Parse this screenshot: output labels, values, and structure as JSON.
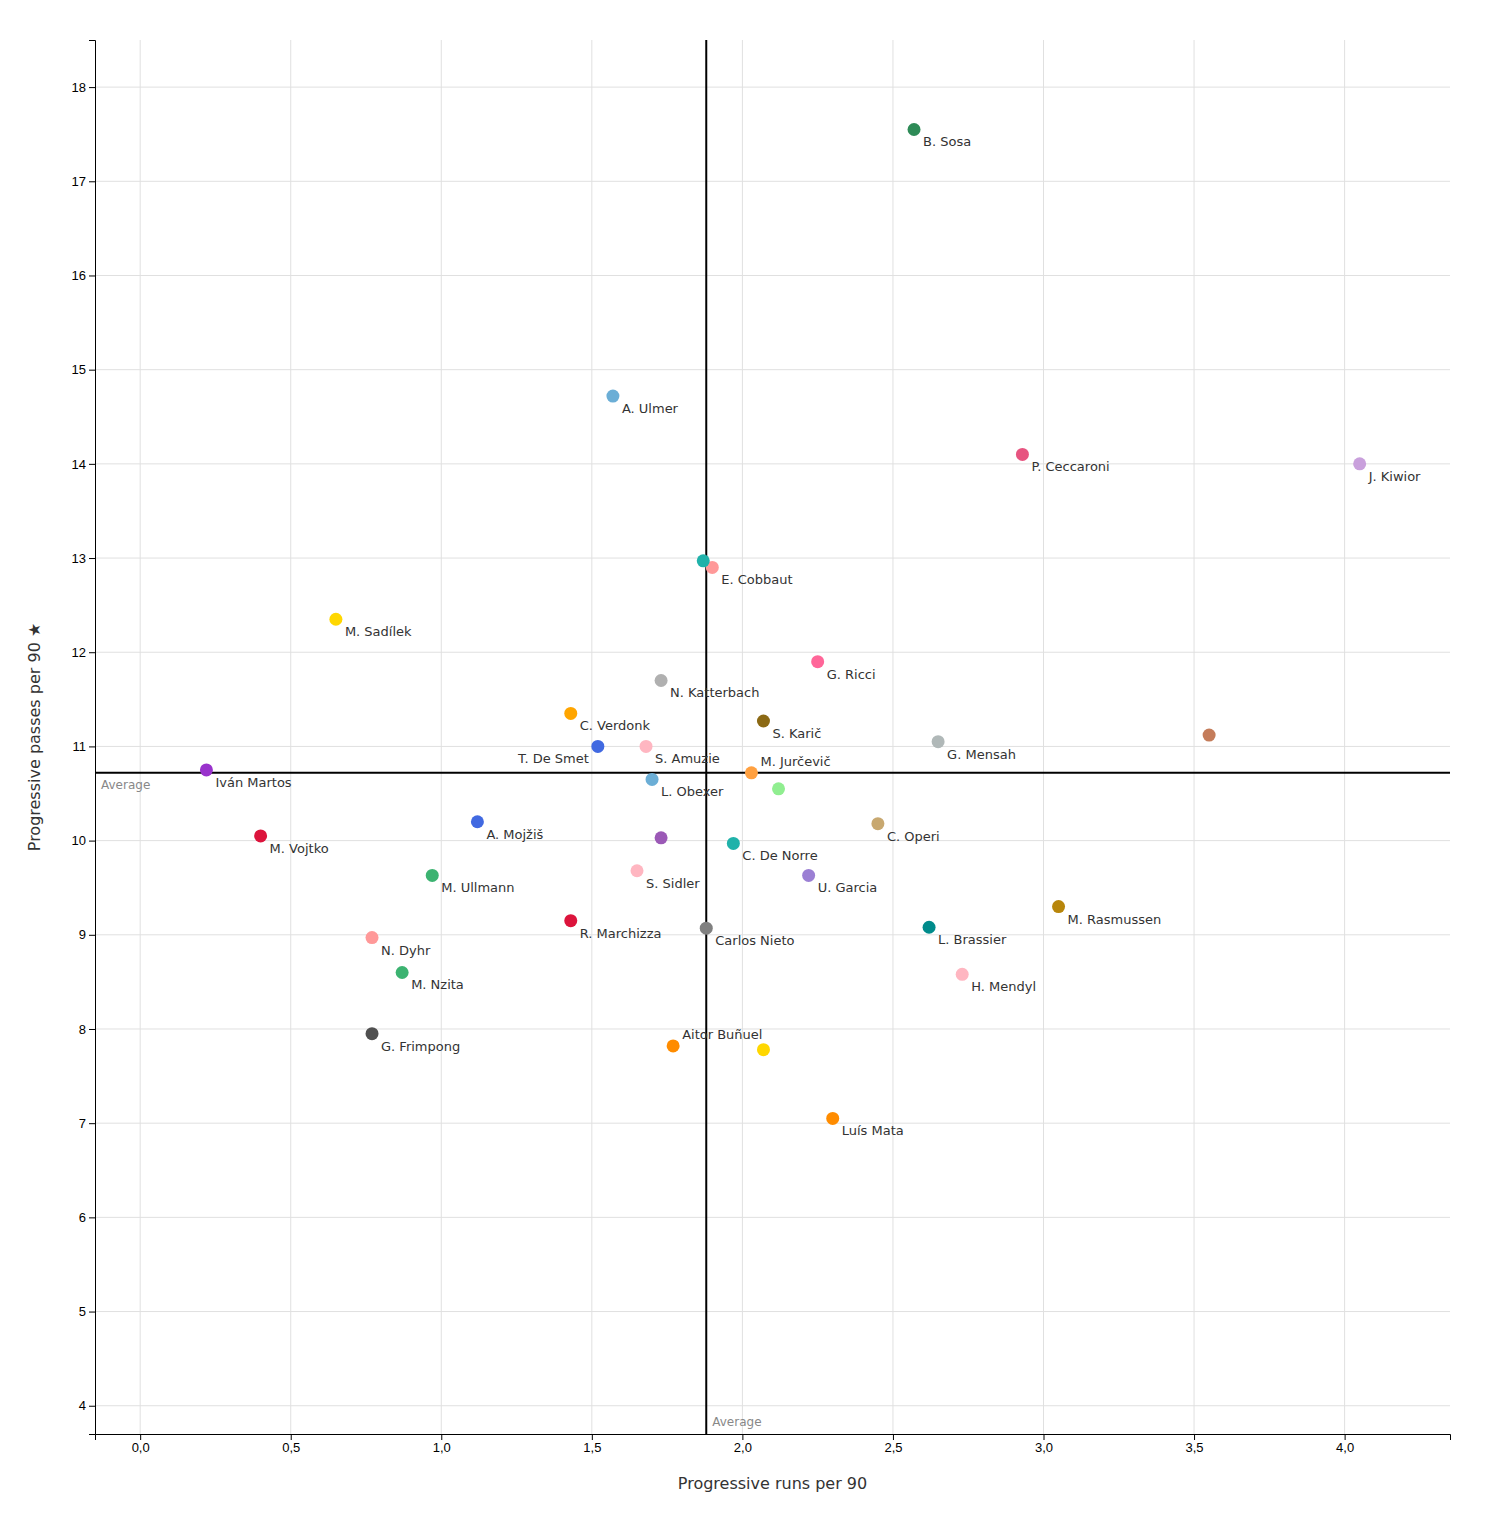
{
  "chart_data": {
    "type": "scatter",
    "xlabel": "Progressive runs per 90",
    "ylabel": "Progressive passes per 90 ★",
    "labels": [
      "B. Sosa",
      "A. Ulmer",
      "P. Ceccaroni",
      "J. Kiwior",
      "E. Cobbaut",
      "M. Sadílek",
      "N. Katterbach",
      "C. Verdonk",
      "G. Ricci",
      "S. Karič",
      "G. Mensah",
      "T. De Smet",
      "S. Amuzie",
      "Iván Martos",
      "M. Jurčevič",
      "L. Obexer",
      "A. Mojžiš",
      "C. Operi",
      "M. Vojtko",
      "C. De Norre",
      "U. Garcia",
      "M. Ullmann",
      "S. Sidler",
      "R. Marchizza",
      "N. Dyhr",
      "L. Brassier",
      "M. Rasmussen",
      "Carlos Nieto",
      "M. Nzita",
      "H. Mendyl",
      "G. Frimpong",
      "Aitor Buñuel",
      "Luís Mata",
      null,
      null,
      null,
      null,
      null
    ],
    "x": [
      2.57,
      1.57,
      2.93,
      4.05,
      1.9,
      0.65,
      1.73,
      1.43,
      2.25,
      2.07,
      2.65,
      1.52,
      1.68,
      0.22,
      2.03,
      1.7,
      1.12,
      2.45,
      0.4,
      1.97,
      2.22,
      0.97,
      1.65,
      1.43,
      0.77,
      2.62,
      3.05,
      1.88,
      0.87,
      2.73,
      0.77,
      1.77,
      2.3,
      1.87,
      2.12,
      2.07,
      3.55,
      1.73
    ],
    "series": [
      {
        "values": [
          17.55,
          14.72,
          14.1,
          14.0,
          12.9,
          12.35,
          11.7,
          11.35,
          11.9,
          11.27,
          11.05,
          11.0,
          11.0,
          10.75,
          10.72,
          10.65,
          10.2,
          10.18,
          10.05,
          9.97,
          9.63,
          9.63,
          9.68,
          9.15,
          8.97,
          9.08,
          9.3,
          9.07,
          8.6,
          8.58,
          7.95,
          7.82,
          7.05,
          12.97,
          10.55,
          7.78,
          11.12,
          10.03
        ]
      }
    ],
    "colors": [
      "#2e8b57",
      "#6baed6",
      "#e75480",
      "#c9a0dc",
      "#ff9999",
      "#ffd700",
      "#b0b0b0",
      "#ffa500",
      "#ff6699",
      "#8b6914",
      "#b0b8b8",
      "#4169e1",
      "#ffb6c1",
      "#9932cc",
      "#ffa040",
      "#6baed6",
      "#4169e1",
      "#c8a870",
      "#dc143c",
      "#20b2aa",
      "#9b7fd4",
      "#3cb371",
      "#ffb6c1",
      "#dc143c",
      "#ff9999",
      "#008b8b",
      "#b8860b",
      "#808080",
      "#3cb371",
      "#ffb6c1",
      "#505050",
      "#ff8c00",
      "#ff8c00",
      "#20b2aa",
      "#90ee90",
      "#ffd700",
      "#c47c5a",
      "#9b59b6"
    ],
    "reference_lines": [
      {
        "axis": "y",
        "value": 10.72,
        "label": "Average"
      },
      {
        "axis": "x",
        "value": 1.88,
        "label": "Average"
      }
    ],
    "xlim": [
      -0.15,
      4.35
    ],
    "ylim": [
      3.7,
      18.5
    ],
    "xticks": [
      {
        "value": 0.0,
        "label": "0,0"
      },
      {
        "value": 0.5,
        "label": "0,5"
      },
      {
        "value": 1.0,
        "label": "1,0"
      },
      {
        "value": 1.5,
        "label": "1,5"
      },
      {
        "value": 2.0,
        "label": "2,0"
      },
      {
        "value": 2.5,
        "label": "2,5"
      },
      {
        "value": 3.0,
        "label": "3,0"
      },
      {
        "value": 3.5,
        "label": "3,5"
      },
      {
        "value": 4.0,
        "label": "4,0"
      }
    ],
    "yticks": [
      4,
      5,
      6,
      7,
      8,
      9,
      10,
      11,
      12,
      13,
      14,
      15,
      16,
      17,
      18
    ],
    "grid": true
  }
}
